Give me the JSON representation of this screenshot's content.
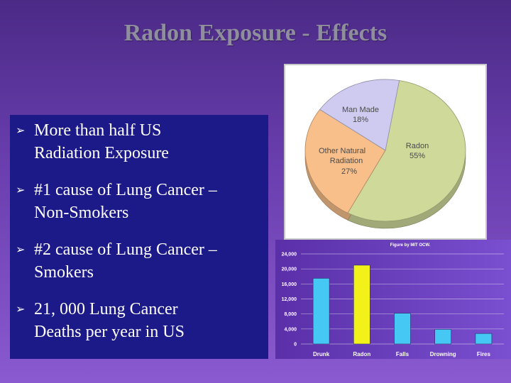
{
  "slide": {
    "title": "Radon Exposure - Effects",
    "bullets": [
      {
        "line1": "More than half US",
        "line2": "Radiation Exposure"
      },
      {
        "line1": "#1 cause of Lung Cancer –",
        "line2": "Non-Smokers"
      },
      {
        "line1": "#2 cause of Lung Cancer –",
        "line2": "Smokers"
      },
      {
        "line1": "21, 000 Lung Cancer",
        "line2": "Deaths per year in US"
      }
    ],
    "bullet_symbol": "➢"
  },
  "chart_data": [
    {
      "type": "pie",
      "slices": [
        {
          "label1": "Radon",
          "label2": "55%",
          "value": 55,
          "color": "#cfd99a"
        },
        {
          "label1": "Other Natural",
          "label2": "Radiation",
          "label3": "27%",
          "value": 27,
          "color": "#f8bf8a"
        },
        {
          "label1": "Man Made",
          "label2": "18%",
          "value": 18,
          "color": "#cfcbf0"
        }
      ]
    },
    {
      "type": "bar",
      "credit": "Figure by MIT OCW.",
      "categories": [
        "Drunk",
        "Radon",
        "Falls",
        "Drowning",
        "Fires"
      ],
      "values": [
        17500,
        21000,
        8200,
        3900,
        2800
      ],
      "highlight_index": 1,
      "bar_color": "#46c8f5",
      "highlight_color": "#f2f21a",
      "ylim": [
        0,
        24000
      ],
      "yticks": [
        "0",
        "4,000",
        "8,000",
        "12,000",
        "16,000",
        "20,000",
        "24,000"
      ],
      "ytick_values": [
        0,
        4000,
        8000,
        12000,
        16000,
        20000,
        24000
      ]
    }
  ]
}
